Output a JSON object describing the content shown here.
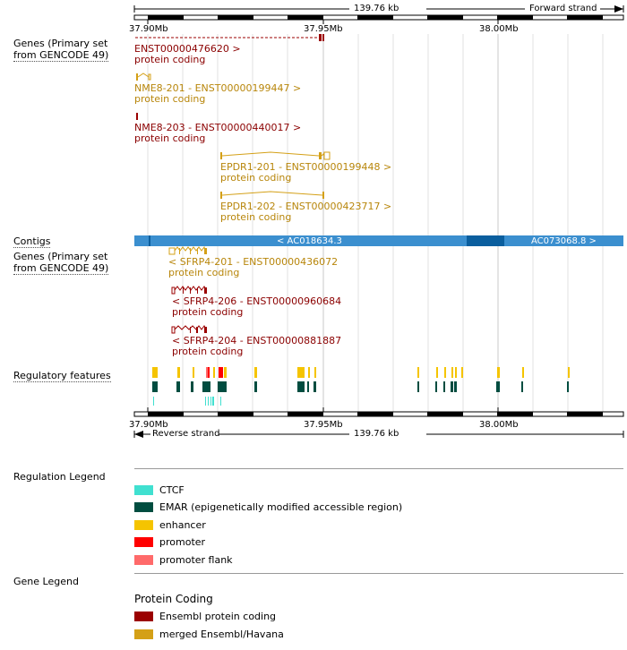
{
  "ruler_top": {
    "length": "139.76 kb",
    "strand": "Forward strand",
    "ticks": [
      "37.90Mb",
      "37.95Mb",
      "38.00Mb"
    ]
  },
  "ruler_bottom": {
    "length": "139.76 kb",
    "strand": "Reverse strand",
    "ticks": [
      "37.90Mb",
      "37.95Mb",
      "38.00Mb"
    ]
  },
  "tracks": {
    "genes_forward_line1": "Genes (Primary set",
    "genes_forward_line2": "from GENCODE 49)",
    "contigs": "Contigs",
    "genes_reverse_line1": "Genes (Primary set",
    "genes_reverse_line2": "from GENCODE 49)",
    "regulatory": "Regulatory features"
  },
  "forward_transcripts": [
    {
      "name": "ENST00000476620 >",
      "biotype": "protein coding"
    },
    {
      "name": "NME8-201 - ENST00000199447 >",
      "biotype": "protein coding"
    },
    {
      "name": "NME8-203 - ENST00000440017 >",
      "biotype": "protein coding"
    },
    {
      "name": "EPDR1-201 - ENST00000199448 >",
      "biotype": "protein coding"
    },
    {
      "name": "EPDR1-202 - ENST00000423717 >",
      "biotype": "protein coding"
    }
  ],
  "contigs": [
    {
      "name": "< AC018634.3"
    },
    {
      "name": "AC073068.8 >"
    }
  ],
  "reverse_transcripts": [
    {
      "name": "< SFRP4-201 - ENST00000436072",
      "biotype": "protein coding"
    },
    {
      "name": "< SFRP4-206 - ENST00000960684",
      "biotype": "protein coding"
    },
    {
      "name": "< SFRP4-204 - ENST00000881887",
      "biotype": "protein coding"
    }
  ],
  "regulation_legend": {
    "title": "Regulation Legend",
    "items": [
      {
        "label": "CTCF",
        "color": "#40e0d0"
      },
      {
        "label": "EMAR (epigenetically modified accessible region)",
        "color": "#004d40"
      },
      {
        "label": "enhancer",
        "color": "#f5c400"
      },
      {
        "label": "promoter",
        "color": "#ff0000"
      },
      {
        "label": "promoter flank",
        "color": "#ff6a6a"
      }
    ]
  },
  "gene_legend": {
    "title": "Gene Legend",
    "subtitle": "Protein Coding",
    "items": [
      {
        "label": "Ensembl protein coding",
        "color": "#9b0000"
      },
      {
        "label": "merged Ensembl/Havana",
        "color": "#d4a017"
      }
    ]
  },
  "colors": {
    "contig_light": "#3b8fcf",
    "contig_dark": "#0a5e9e",
    "transcript_red": "#8b0000",
    "transcript_gold": "#b8860b"
  }
}
